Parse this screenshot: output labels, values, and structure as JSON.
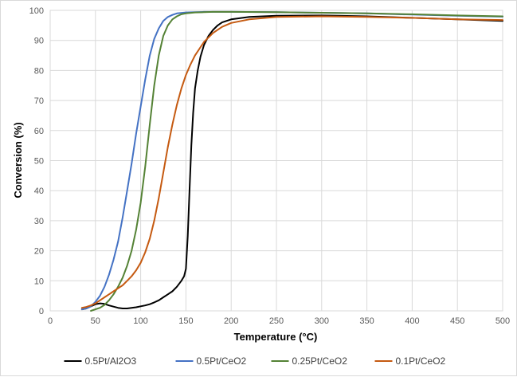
{
  "chart_data": {
    "type": "line",
    "title": "",
    "xlabel": "Temperature (°C)",
    "ylabel": "Conversion (%)",
    "xlim": [
      0,
      500
    ],
    "ylim": [
      0,
      100
    ],
    "x_ticks": [
      0,
      50,
      100,
      150,
      200,
      250,
      300,
      350,
      400,
      450,
      500
    ],
    "y_ticks": [
      0,
      10,
      20,
      30,
      40,
      50,
      60,
      70,
      80,
      90,
      100
    ],
    "grid": true,
    "legend_position": "bottom",
    "series": [
      {
        "name": "0.5Pt/Al2O3",
        "color": "#000000",
        "x": [
          35,
          40,
          45,
          50,
          55,
          60,
          65,
          70,
          75,
          80,
          85,
          90,
          95,
          100,
          105,
          110,
          115,
          120,
          125,
          130,
          135,
          140,
          145,
          148,
          150,
          152,
          154,
          156,
          158,
          160,
          163,
          166,
          170,
          175,
          180,
          185,
          190,
          200,
          220,
          250,
          300,
          350,
          400,
          450,
          500
        ],
        "y": [
          0.5,
          0.8,
          1.5,
          2.2,
          2.5,
          2.3,
          1.8,
          1.4,
          1.0,
          0.8,
          0.8,
          1.0,
          1.2,
          1.5,
          1.8,
          2.2,
          2.8,
          3.5,
          4.5,
          5.5,
          6.5,
          8.0,
          10.0,
          11.5,
          14.0,
          25.0,
          40.0,
          55.0,
          66.0,
          74.0,
          80.0,
          84.5,
          88.5,
          91.5,
          93.5,
          95.0,
          96.0,
          97.0,
          97.8,
          98.2,
          98.3,
          98.0,
          97.5,
          97.0,
          96.5
        ]
      },
      {
        "name": "0.5Pt/CeO2",
        "color": "#4472C4",
        "x": [
          35,
          40,
          45,
          50,
          55,
          60,
          65,
          70,
          75,
          80,
          85,
          90,
          95,
          100,
          105,
          110,
          115,
          120,
          125,
          130,
          135,
          140,
          150,
          160,
          170,
          180,
          200,
          250,
          300,
          350,
          400,
          450,
          500
        ],
        "y": [
          0.5,
          0.8,
          1.5,
          3.0,
          5.0,
          8.0,
          12.0,
          17.0,
          23.0,
          31.0,
          40.0,
          49.0,
          59.0,
          68.0,
          77.0,
          85.0,
          90.5,
          94.0,
          96.5,
          97.8,
          98.5,
          99.0,
          99.3,
          99.4,
          99.5,
          99.5,
          99.5,
          99.4,
          99.2,
          99.0,
          98.6,
          98.2,
          97.9
        ]
      },
      {
        "name": "0.25Pt/CeO2",
        "color": "#548235",
        "x": [
          45,
          50,
          55,
          60,
          65,
          70,
          75,
          80,
          85,
          90,
          95,
          100,
          105,
          110,
          115,
          120,
          125,
          130,
          135,
          140,
          145,
          150,
          160,
          170,
          180,
          200,
          250,
          300,
          350,
          400,
          450,
          500
        ],
        "y": [
          0.0,
          0.5,
          1.0,
          2.0,
          3.5,
          5.5,
          8.0,
          11.0,
          15.0,
          20.0,
          27.0,
          36.0,
          48.0,
          62.0,
          75.0,
          85.0,
          91.5,
          95.0,
          97.0,
          98.0,
          98.7,
          99.0,
          99.3,
          99.4,
          99.5,
          99.5,
          99.4,
          99.2,
          99.0,
          98.7,
          98.3,
          98.0
        ]
      },
      {
        "name": "0.1Pt/CeO2",
        "color": "#C55A11",
        "x": [
          35,
          40,
          45,
          50,
          55,
          60,
          65,
          70,
          75,
          80,
          85,
          90,
          95,
          100,
          105,
          110,
          115,
          120,
          125,
          130,
          135,
          140,
          145,
          150,
          155,
          160,
          170,
          180,
          190,
          200,
          220,
          250,
          300,
          350,
          400,
          450,
          500
        ],
        "y": [
          1.0,
          1.3,
          1.8,
          2.5,
          3.5,
          4.5,
          5.5,
          6.5,
          7.5,
          8.5,
          10.0,
          11.5,
          13.5,
          16.0,
          19.5,
          24.0,
          30.0,
          37.5,
          46.0,
          54.5,
          62.0,
          68.5,
          74.0,
          78.5,
          82.0,
          85.0,
          89.5,
          92.5,
          94.5,
          95.8,
          97.0,
          97.8,
          98.0,
          97.8,
          97.5,
          97.0,
          96.8
        ]
      }
    ]
  }
}
